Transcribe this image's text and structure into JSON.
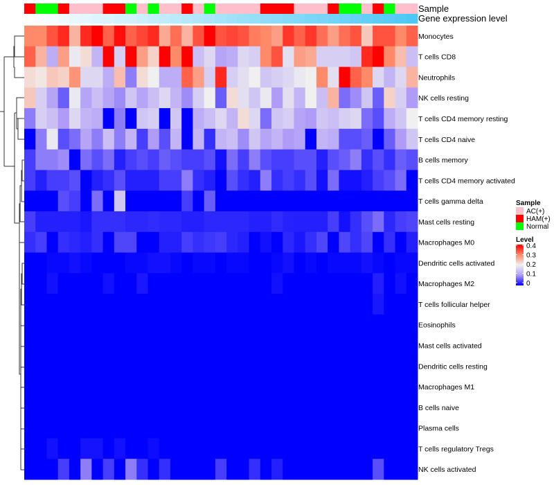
{
  "chart_data": {
    "type": "heatmap",
    "annotation_titles": {
      "sample": "Sample",
      "gene": "Gene expression level"
    },
    "sample_groups": [
      "HAM(+)",
      "Normal",
      "Normal",
      "HAM(+)",
      "AC(+)",
      "AC(+)",
      "AC(+)",
      "HAM(+)",
      "HAM(+)",
      "Normal",
      "AC(+)",
      "Normal",
      "AC(+)",
      "AC(+)",
      "HAM(+)",
      "AC(+)",
      "Normal",
      "AC(+)",
      "AC(+)",
      "AC(+)",
      "AC(+)",
      "HAM(+)",
      "HAM(+)",
      "HAM(+)",
      "AC(+)",
      "AC(+)",
      "AC(+)",
      "HAM(+)",
      "Normal",
      "Normal",
      "AC(+)",
      "HAM(+)",
      "Normal",
      "AC(+)",
      "AC(+)"
    ],
    "gene_expression_level_relative": [
      0,
      0.03,
      0.06,
      0.09,
      0.12,
      0.15,
      0.18,
      0.21,
      0.24,
      0.26,
      0.29,
      0.32,
      0.35,
      0.38,
      0.41,
      0.44,
      0.47,
      0.5,
      0.53,
      0.56,
      0.59,
      0.62,
      0.65,
      0.68,
      0.71,
      0.74,
      0.76,
      0.79,
      0.82,
      0.85,
      0.88,
      0.91,
      0.94,
      0.97,
      1
    ],
    "rows": [
      {
        "label": "Monocytes",
        "values": [
          0.3,
          0.3,
          0.34,
          0.37,
          0.26,
          0.37,
          0.4,
          0.33,
          0.39,
          0.33,
          0.35,
          0.37,
          0.27,
          0.32,
          0.26,
          0.34,
          0.4,
          0.34,
          0.35,
          0.34,
          0.31,
          0.3,
          0.28,
          0.36,
          0.33,
          0.36,
          0.32,
          0.28,
          0.32,
          0.34,
          0.24,
          0.34,
          0.34,
          0.3,
          0.33
        ]
      },
      {
        "label": "T cells CD8",
        "values": [
          0.33,
          0.26,
          0.12,
          0.28,
          0.19,
          0.22,
          0.13,
          0.4,
          0.16,
          0.4,
          0.28,
          0.23,
          0.4,
          0.3,
          0.4,
          0.14,
          0.17,
          0.11,
          0.12,
          0.17,
          0.16,
          0.3,
          0.34,
          0.18,
          0.28,
          0.27,
          0.16,
          0.16,
          0.16,
          0.15,
          0.37,
          0.4,
          0.3,
          0.25,
          0.14
        ]
      },
      {
        "label": "Neutrophils",
        "values": [
          0.22,
          0.21,
          0.24,
          0.23,
          0.29,
          0.17,
          0.17,
          0.12,
          0.25,
          0.08,
          0.22,
          0.2,
          0.12,
          0.12,
          0.33,
          0.28,
          0.16,
          0.37,
          0.16,
          0.18,
          0.2,
          0.15,
          0.16,
          0.17,
          0.19,
          0.2,
          0.3,
          0.18,
          0.4,
          0.33,
          0.3,
          0.17,
          0.13,
          0.17,
          0.26
        ]
      },
      {
        "label": "NK cells resting",
        "values": [
          0.24,
          0.16,
          0.11,
          0.06,
          0.19,
          0.11,
          0.14,
          0.11,
          0.09,
          0.15,
          0.11,
          0.14,
          0.17,
          0.13,
          0.09,
          0.16,
          0.2,
          0.06,
          0.22,
          0.18,
          0.15,
          0.19,
          0.1,
          0.18,
          0.13,
          0.2,
          0.14,
          0.26,
          0.07,
          0.09,
          0.15,
          0.06,
          0.23,
          0.16,
          0.1
        ]
      },
      {
        "label": "T cells CD4 memory resting",
        "values": [
          0.08,
          0.16,
          0.14,
          0.1,
          0.17,
          0.13,
          0.12,
          0,
          0.08,
          0,
          0.15,
          0.16,
          0,
          0.15,
          0,
          0.12,
          0.14,
          0.17,
          0.13,
          0.22,
          0.17,
          0.07,
          0.15,
          0.16,
          0.11,
          0.1,
          0.15,
          0.14,
          0.16,
          0.17,
          0.07,
          0.05,
          0.12,
          0.15,
          0.2
        ]
      },
      {
        "label": "T cells CD4 naive",
        "values": [
          0,
          0.08,
          0.19,
          0.05,
          0.07,
          0.11,
          0.08,
          0.14,
          0.08,
          0.13,
          0.04,
          0.1,
          0.05,
          0.13,
          0,
          0.13,
          0.03,
          0.13,
          0.14,
          0.09,
          0.15,
          0.11,
          0.13,
          0.1,
          0.11,
          0,
          0.13,
          0.12,
          0.05,
          0.05,
          0.06,
          0,
          0.06,
          0.1,
          0.15
        ]
      },
      {
        "label": "B cells memory",
        "values": [
          0.04,
          0.08,
          0.08,
          0.09,
          0,
          0.07,
          0.05,
          0.07,
          0.02,
          0.04,
          0.05,
          0.04,
          0.06,
          0.05,
          0.04,
          0.04,
          0.05,
          0.01,
          0.07,
          0.04,
          0.08,
          0.05,
          0.04,
          0.04,
          0.05,
          0.05,
          0.02,
          0.05,
          0.06,
          0.08,
          0.03,
          0.05,
          0.03,
          0.06,
          0.05
        ]
      },
      {
        "label": "T cells CD4 memory activated",
        "values": [
          0.04,
          0.02,
          0.04,
          0.04,
          0.05,
          0,
          0.02,
          0.03,
          0.05,
          0.02,
          0.02,
          0.02,
          0.04,
          0.04,
          0.08,
          0.03,
          0.02,
          0,
          0.05,
          0.03,
          0.02,
          0.08,
          0.03,
          0.04,
          0.03,
          0.05,
          0.01,
          0.07,
          0.01,
          0.01,
          0.02,
          0.04,
          0.05,
          0.07,
          0
        ]
      },
      {
        "label": "T cells gamma delta",
        "values": [
          0,
          0,
          0,
          0.05,
          0.04,
          0,
          0.07,
          0,
          0.15,
          0,
          0,
          0,
          0,
          0,
          0.04,
          0,
          0.06,
          0,
          0,
          0,
          0,
          0,
          0,
          0,
          0,
          0,
          0,
          0,
          0,
          0,
          0,
          0,
          0,
          0,
          0
        ]
      },
      {
        "label": "Mast cells resting",
        "values": [
          0.04,
          0.02,
          0.02,
          0.02,
          0.02,
          0.015,
          0.03,
          0.03,
          0.03,
          0.025,
          0.025,
          0.028,
          0.025,
          0.025,
          0.02,
          0.02,
          0.025,
          0.025,
          0.025,
          0.025,
          0.02,
          0.02,
          0.028,
          0.022,
          0.02,
          0.02,
          0.02,
          0.04,
          0.01,
          0.03,
          0.05,
          0.07,
          0.025,
          0.04,
          0.045
        ]
      },
      {
        "label": "Macrophages M0",
        "values": [
          0.03,
          0.04,
          0,
          0.03,
          0.025,
          0.02,
          0.03,
          0,
          0.045,
          0.045,
          0,
          0,
          0.02,
          0.02,
          0.04,
          0.03,
          0.035,
          0.04,
          0.025,
          0.02,
          0,
          0.01,
          0,
          0.025,
          0.015,
          0.03,
          0.045,
          0,
          0.045,
          0.03,
          0.045,
          0,
          0.03,
          0,
          0.02
        ]
      },
      {
        "label": "Dendritic cells activated",
        "values": [
          0,
          0,
          0.005,
          0.005,
          0.01,
          0.005,
          0,
          0,
          0,
          0.005,
          0.005,
          0.01,
          0.01,
          0.005,
          0,
          0.005,
          0.005,
          0,
          0.005,
          0.005,
          0,
          0,
          0.005,
          0.01,
          0,
          0.005,
          0,
          0.005,
          0.005,
          0.005,
          0.01,
          0.005,
          0,
          0.005,
          0.005
        ]
      },
      {
        "label": "Macrophages M2",
        "values": [
          0,
          0,
          0.01,
          0,
          0,
          0,
          0,
          0.01,
          0,
          0,
          0.015,
          0,
          0,
          0,
          0,
          0,
          0,
          0,
          0,
          0,
          0,
          0,
          0.01,
          0,
          0,
          0,
          0,
          0,
          0,
          0,
          0,
          0.02,
          0,
          0.01,
          0
        ]
      },
      {
        "label": "T cells follicular helper",
        "values": [
          0,
          0,
          0,
          0,
          0,
          0,
          0,
          0,
          0,
          0,
          0,
          0,
          0,
          0,
          0,
          0,
          0,
          0,
          0,
          0,
          0,
          0,
          0,
          0,
          0,
          0,
          0,
          0,
          0,
          0,
          0,
          0.015,
          0,
          0,
          0
        ]
      },
      {
        "label": "Eosinophils",
        "values": [
          0,
          0,
          0,
          0,
          0,
          0,
          0,
          0,
          0,
          0,
          0,
          0,
          0,
          0,
          0,
          0,
          0,
          0,
          0,
          0,
          0,
          0,
          0,
          0,
          0,
          0,
          0,
          0,
          0,
          0,
          0,
          0,
          0,
          0,
          0
        ]
      },
      {
        "label": "Mast cells activated",
        "values": [
          0,
          0,
          0,
          0,
          0,
          0,
          0,
          0,
          0,
          0,
          0,
          0,
          0,
          0,
          0,
          0,
          0,
          0,
          0,
          0,
          0,
          0,
          0,
          0,
          0,
          0,
          0,
          0,
          0,
          0,
          0,
          0,
          0,
          0,
          0
        ]
      },
      {
        "label": "Dendritic cells resting",
        "values": [
          0,
          0,
          0,
          0,
          0,
          0,
          0,
          0,
          0,
          0,
          0,
          0,
          0,
          0,
          0,
          0,
          0,
          0,
          0,
          0,
          0,
          0,
          0,
          0,
          0,
          0,
          0,
          0,
          0,
          0,
          0,
          0,
          0,
          0,
          0
        ]
      },
      {
        "label": "Macrophages M1",
        "values": [
          0,
          0,
          0,
          0,
          0,
          0,
          0,
          0,
          0,
          0,
          0,
          0,
          0,
          0,
          0,
          0,
          0,
          0,
          0,
          0,
          0,
          0,
          0,
          0,
          0,
          0,
          0,
          0,
          0,
          0,
          0,
          0,
          0,
          0,
          0
        ]
      },
      {
        "label": "B cells naive",
        "values": [
          0,
          0,
          0,
          0,
          0,
          0,
          0,
          0,
          0,
          0,
          0,
          0,
          0,
          0,
          0,
          0,
          0,
          0,
          0,
          0,
          0,
          0,
          0,
          0,
          0,
          0,
          0,
          0,
          0,
          0,
          0,
          0,
          0,
          0,
          0
        ]
      },
      {
        "label": "Plasma cells",
        "values": [
          0,
          0,
          0,
          0,
          0,
          0,
          0,
          0,
          0,
          0,
          0,
          0,
          0,
          0,
          0,
          0,
          0,
          0,
          0,
          0,
          0,
          0,
          0,
          0,
          0,
          0,
          0,
          0,
          0,
          0,
          0,
          0,
          0,
          0,
          0
        ]
      },
      {
        "label": "T cells regulatory  Tregs",
        "values": [
          0,
          0,
          0.01,
          0,
          0,
          0.012,
          0.012,
          0,
          0.01,
          0,
          0,
          0.008,
          0,
          0,
          0,
          0,
          0,
          0,
          0,
          0,
          0,
          0,
          0,
          0,
          0,
          0,
          0,
          0,
          0,
          0,
          0,
          0,
          0,
          0,
          0
        ]
      },
      {
        "label": "NK cells activated",
        "values": [
          0,
          0,
          0,
          0.04,
          0,
          0.08,
          0,
          0.04,
          0,
          0.08,
          0.03,
          0,
          0.03,
          0,
          0,
          0,
          0,
          0.04,
          0,
          0,
          0.03,
          0,
          0.02,
          0,
          0,
          0,
          0,
          0,
          0,
          0,
          0,
          0.05,
          0,
          0,
          0
        ]
      }
    ],
    "legend": {
      "sample_title": "Sample",
      "sample_entries": [
        {
          "label": "AC(+)",
          "color": "#ffc0cb"
        },
        {
          "label": "HAM(+)",
          "color": "#ff0000"
        },
        {
          "label": "Normal",
          "color": "#00ff00"
        }
      ],
      "level_title": "Level",
      "level_ticks": [
        "0.4",
        "0.3",
        "0.2",
        "0.1",
        "0"
      ],
      "level_range": [
        0,
        0.4
      ],
      "placement": "right"
    },
    "colors": {
      "low": "#0000ff",
      "mid": "#f0f0f0",
      "high": "#ff0000",
      "gene_low": "#ffffff",
      "gene_high": "#4dc8f5"
    }
  }
}
